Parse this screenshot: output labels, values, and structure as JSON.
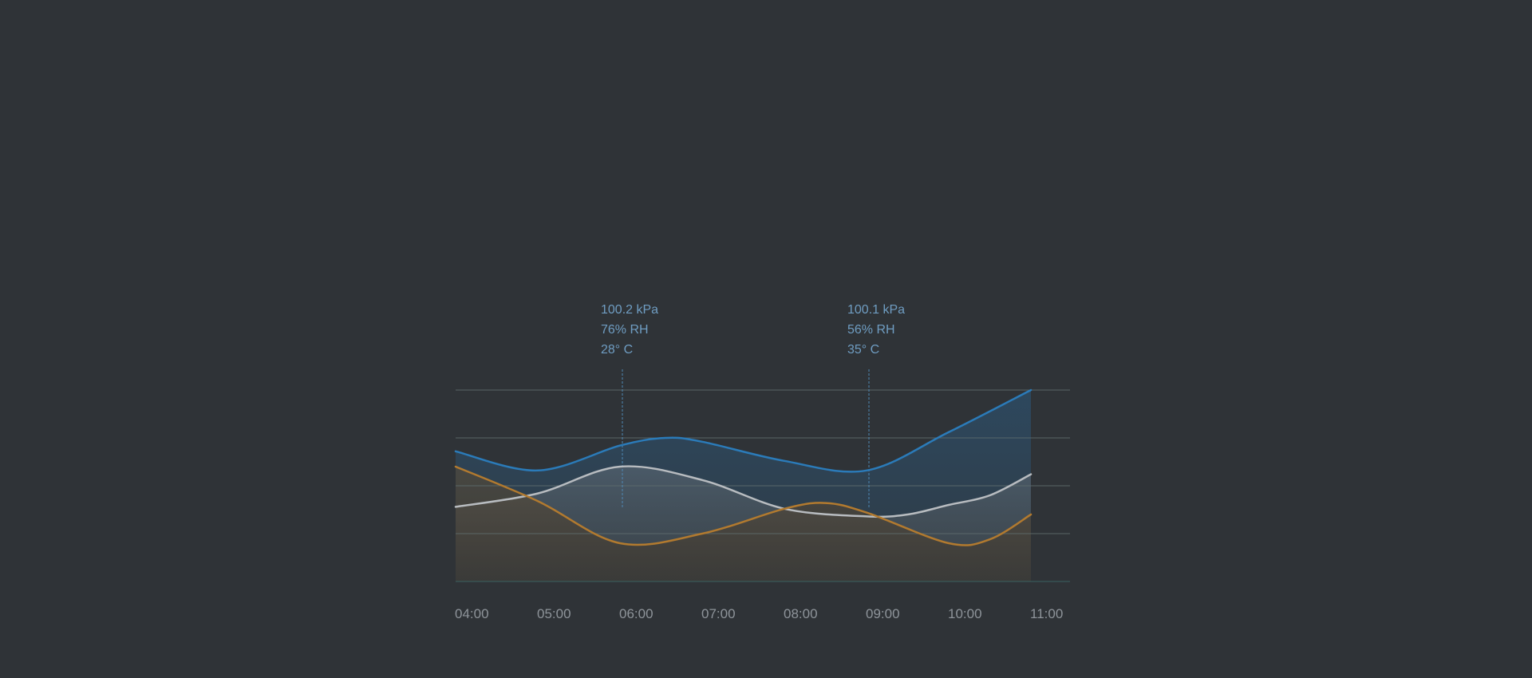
{
  "chart_data": {
    "type": "area",
    "x_categories": [
      "04:00",
      "05:00",
      "06:00",
      "07:00",
      "08:00",
      "09:00",
      "10:00",
      "11:00"
    ],
    "series": [
      {
        "color": "#2b7bb9",
        "points": [
          [
            0,
            68
          ],
          [
            1,
            58
          ],
          [
            2,
            71
          ],
          [
            2.55,
            75
          ],
          [
            3,
            73
          ],
          [
            4,
            63
          ],
          [
            5,
            58
          ],
          [
            6,
            78
          ],
          [
            7.0,
            100
          ]
        ]
      },
      {
        "color": "#b8bcc0",
        "points": [
          [
            0,
            39
          ],
          [
            1,
            46
          ],
          [
            2,
            60
          ],
          [
            3,
            53
          ],
          [
            4,
            38
          ],
          [
            5,
            34
          ],
          [
            5.5,
            35
          ],
          [
            6,
            40
          ],
          [
            6.5,
            45
          ],
          [
            7.0,
            56
          ]
        ]
      },
      {
        "color": "#b27a2f",
        "points": [
          [
            0,
            60
          ],
          [
            1,
            42
          ],
          [
            2,
            20
          ],
          [
            3,
            25
          ],
          [
            4,
            38
          ],
          [
            4.5,
            41
          ],
          [
            5,
            36
          ],
          [
            6,
            20
          ],
          [
            6.5,
            22
          ],
          [
            7.0,
            35
          ]
        ]
      }
    ],
    "annotations": [
      {
        "x": 2,
        "lines": [
          "100.2 kPa",
          "76% RH",
          "28° C"
        ]
      },
      {
        "x": 5,
        "lines": [
          "100.1 kPa",
          "56% RH",
          "35° C"
        ]
      }
    ],
    "grid": true,
    "colors": {
      "background": "#2f3337",
      "grid": "#5f6d6f",
      "grid_bottom": "#3c6a68",
      "marker": "#4f88b5",
      "annotation_text": "#6f9dc2",
      "tick_text": "#8e949a"
    }
  }
}
